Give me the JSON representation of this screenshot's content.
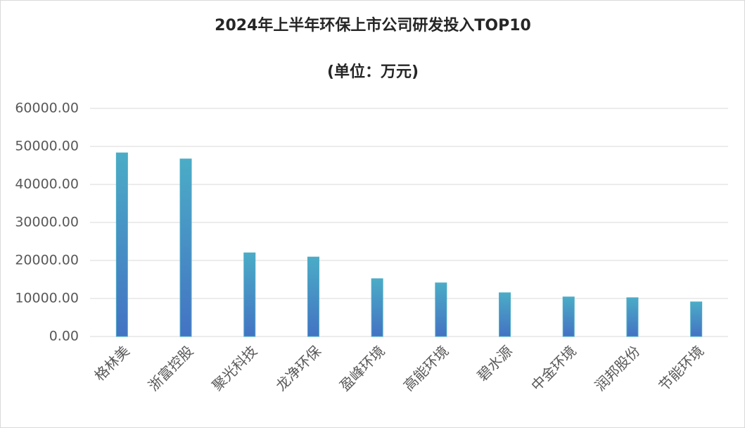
{
  "chart_data": {
    "type": "bar",
    "title": "2024年上半年环保上市公司研发投入TOP10",
    "subtitle": "(单位：万元)",
    "categories": [
      "格林美",
      "浙富控股",
      "聚光科技",
      "龙净环保",
      "盈峰环境",
      "高能环境",
      "碧水源",
      "中金环境",
      "润邦股份",
      "节能环境"
    ],
    "values": [
      48300,
      46700,
      22000,
      20900,
      15200,
      14100,
      11500,
      10400,
      10200,
      9100
    ],
    "colors": [
      "#4bacc6",
      "#4472c4"
    ],
    "ylim": [
      0,
      60000
    ],
    "yticks": [
      {
        "value": 0,
        "label": "0.00"
      },
      {
        "value": 10000,
        "label": "10000.00"
      },
      {
        "value": 20000,
        "label": "20000.00"
      },
      {
        "value": 30000,
        "label": "30000.00"
      },
      {
        "value": 40000,
        "label": "40000.00"
      },
      {
        "value": 50000,
        "label": "50000.00"
      },
      {
        "value": 60000,
        "label": "60000.00"
      }
    ],
    "grid": true
  }
}
